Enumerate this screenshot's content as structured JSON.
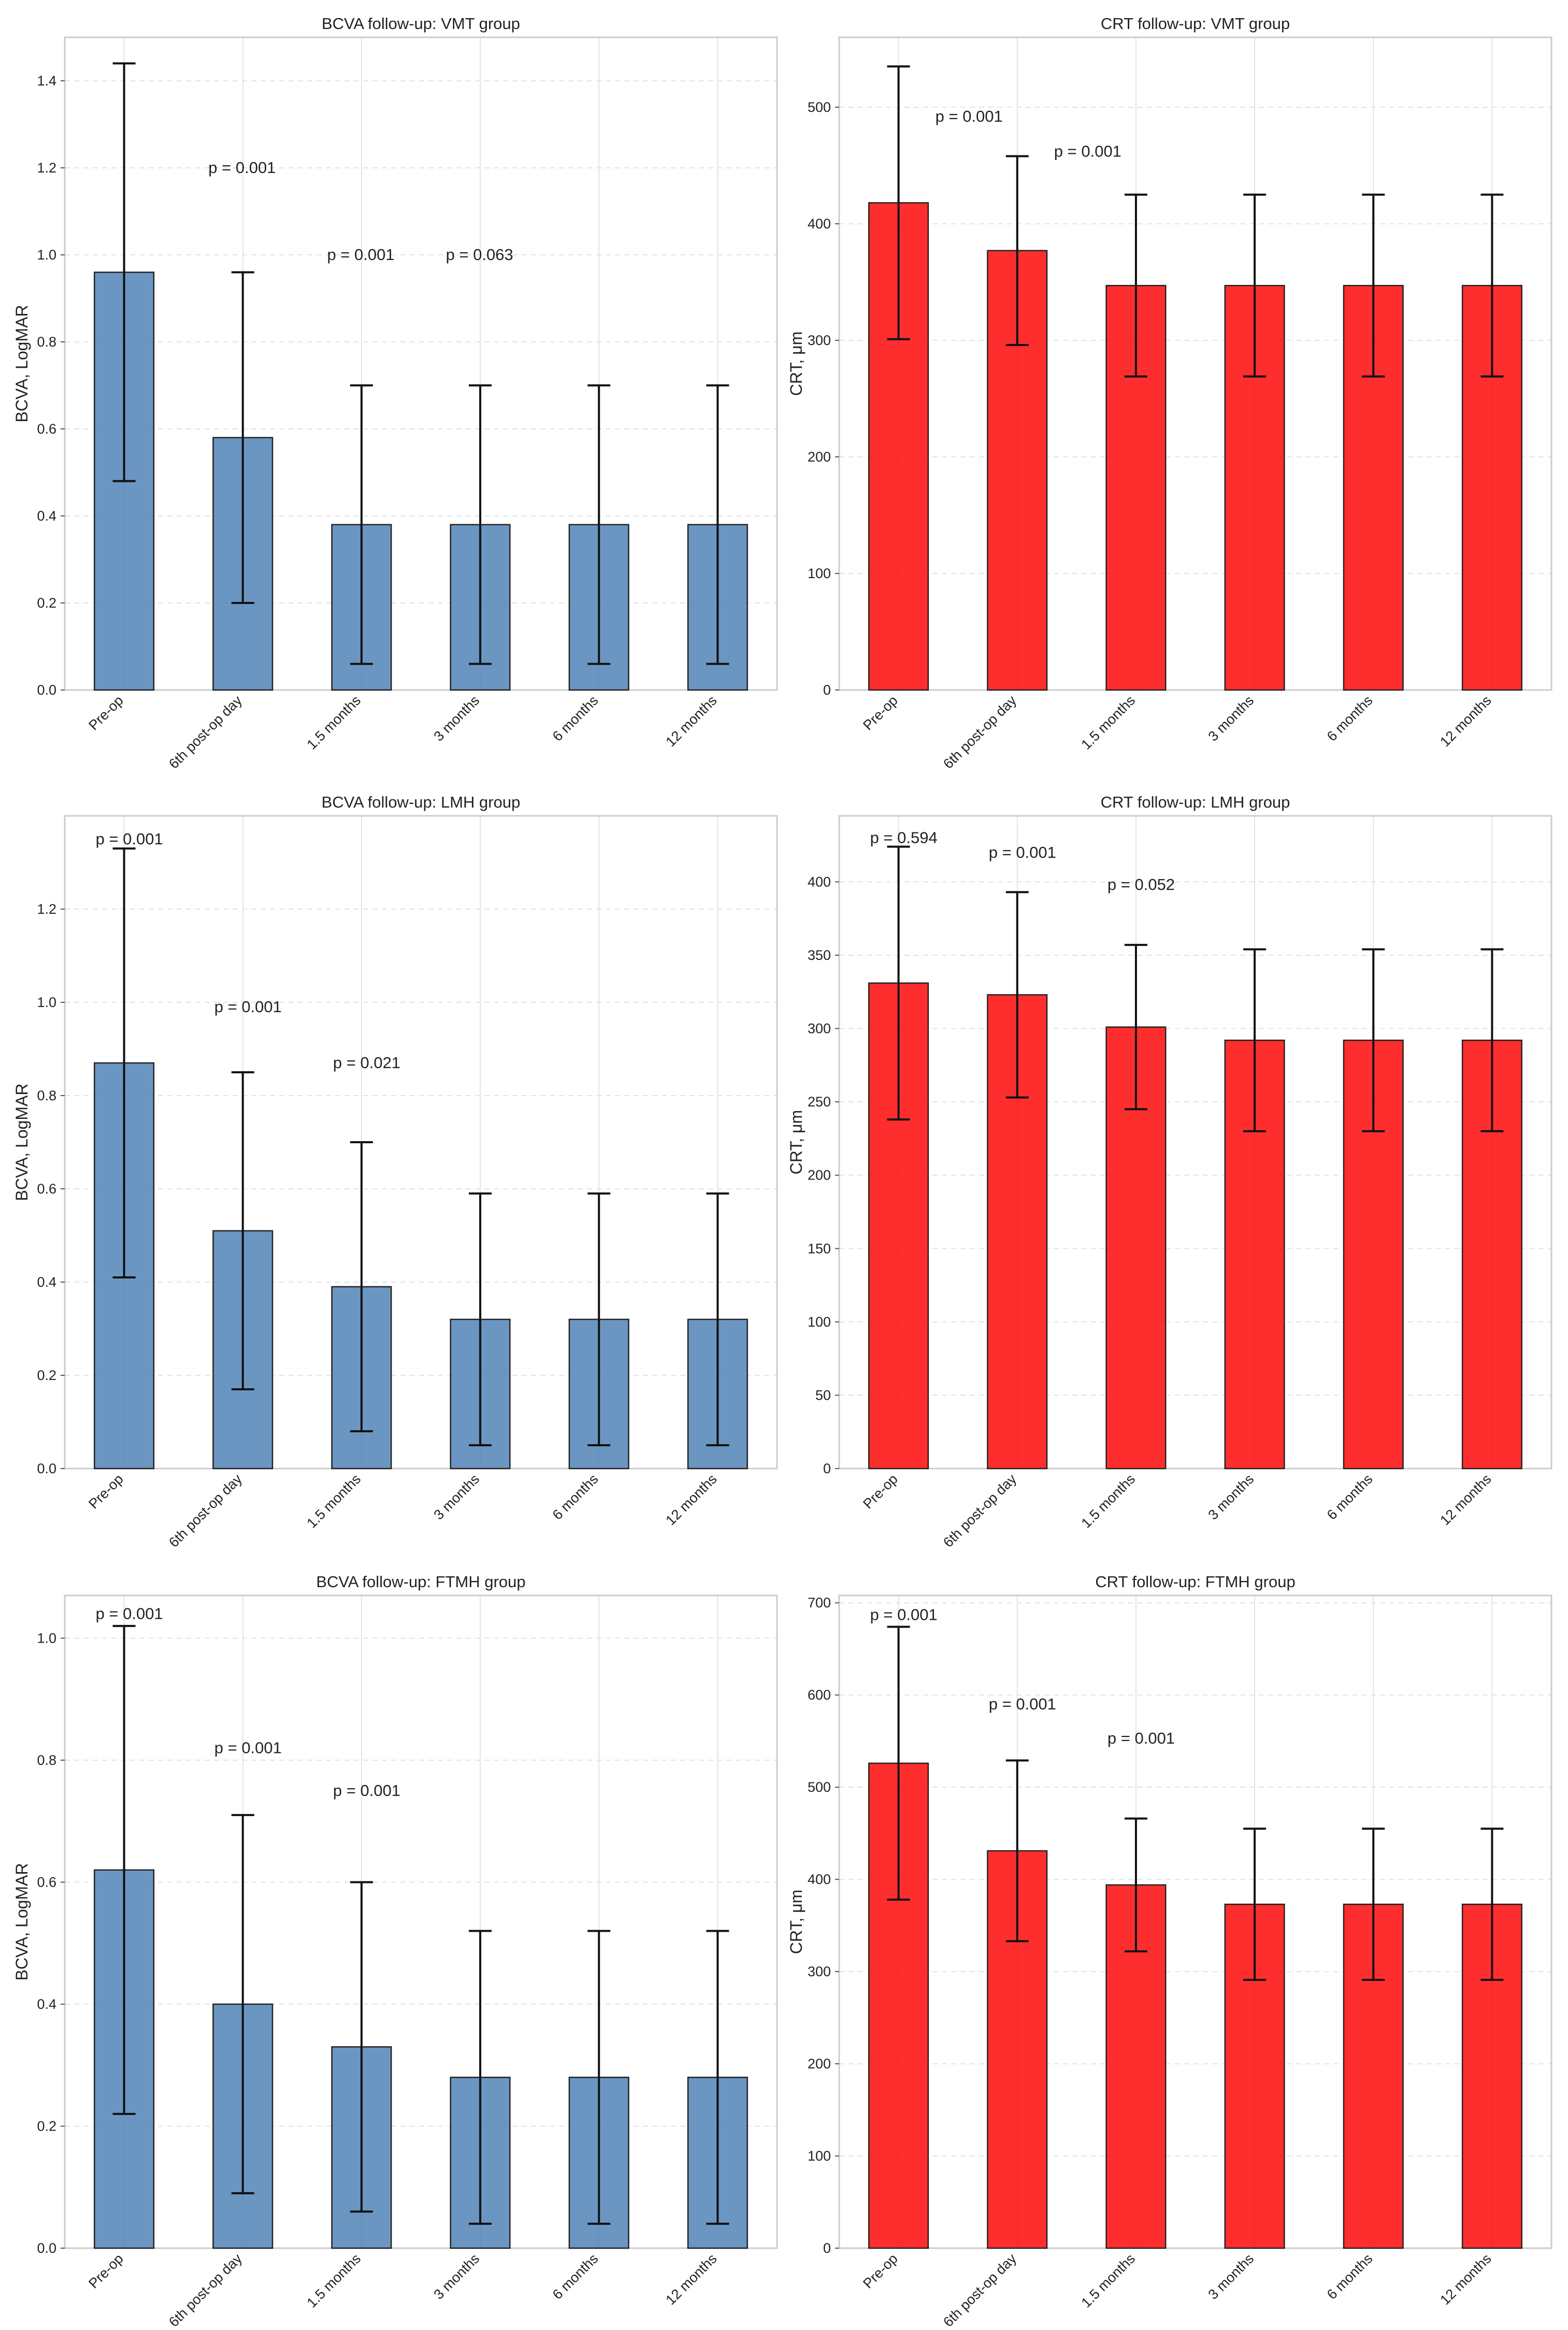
{
  "figure": {
    "bar_color_bcva": "#4a7fb5",
    "bar_color_crt": "#ff0000",
    "bar_edge": "#222222",
    "grid_color": "#e3e3e3"
  },
  "chart_data": [
    {
      "type": "bar",
      "title": "BCVA follow-up: VMT group",
      "ylabel": "BCVA, LogMAR",
      "xlabel": "",
      "color": "#4a7fb5",
      "categories": [
        "Pre-op",
        "6th post-op day",
        "1.5 months",
        "3 months",
        "6 months",
        "12 months"
      ],
      "values": [
        0.96,
        0.58,
        0.38,
        0.38,
        0.38,
        0.38
      ],
      "errors": [
        0.48,
        0.38,
        0.32,
        0.32,
        0.32,
        0.32
      ],
      "ylim": [
        0,
        1.5
      ],
      "yticks": [
        0.0,
        0.2,
        0.4,
        0.6,
        0.8,
        1.0,
        1.2,
        1.4
      ],
      "ytick_decimals": 1,
      "annotations": [
        {
          "text": "p = 0.001",
          "x": 0.95,
          "y": 1.2
        },
        {
          "text": "p = 0.001",
          "x": 1.95,
          "y": 1.0
        },
        {
          "text": "p = 0.063",
          "x": 2.95,
          "y": 1.0
        }
      ]
    },
    {
      "type": "bar",
      "title": "CRT follow-up: VMT group",
      "ylabel": "CRT, μm",
      "xlabel": "",
      "color": "#ff0000",
      "categories": [
        "Pre-op",
        "6th post-op day",
        "1.5 months",
        "3 months",
        "6 months",
        "12 months"
      ],
      "values": [
        418,
        377,
        347,
        347,
        347,
        347
      ],
      "errors": [
        117,
        81,
        78,
        78,
        78,
        78
      ],
      "ylim": [
        0,
        560
      ],
      "yticks": [
        0,
        100,
        200,
        300,
        400,
        500
      ],
      "ytick_decimals": 0,
      "annotations": [
        {
          "text": "p = 0.001",
          "x": 0.55,
          "y": 492
        },
        {
          "text": "p = 0.001",
          "x": 1.55,
          "y": 462
        }
      ]
    },
    {
      "type": "bar",
      "title": "BCVA follow-up: LMH group",
      "ylabel": "BCVA, LogMAR",
      "xlabel": "",
      "color": "#4a7fb5",
      "categories": [
        "Pre-op",
        "6th post-op day",
        "1.5 months",
        "3 months",
        "6 months",
        "12 months"
      ],
      "values": [
        0.87,
        0.51,
        0.39,
        0.32,
        0.32,
        0.32
      ],
      "errors": [
        0.46,
        0.34,
        0.31,
        0.27,
        0.27,
        0.27
      ],
      "ylim": [
        0,
        1.4
      ],
      "yticks": [
        0.0,
        0.2,
        0.4,
        0.6,
        0.8,
        1.0,
        1.2
      ],
      "ytick_decimals": 1,
      "annotations": [
        {
          "text": "p = 0.001",
          "x": 0.0,
          "y": 1.35
        },
        {
          "text": "p = 0.001",
          "x": 1.0,
          "y": 0.99
        },
        {
          "text": "p = 0.021",
          "x": 2.0,
          "y": 0.87
        }
      ]
    },
    {
      "type": "bar",
      "title": "CRT follow-up: LMH group",
      "ylabel": "CRT, μm",
      "xlabel": "",
      "color": "#ff0000",
      "categories": [
        "Pre-op",
        "6th post-op day",
        "1.5 months",
        "3 months",
        "6 months",
        "12 months"
      ],
      "values": [
        331,
        323,
        301,
        292,
        292,
        292
      ],
      "errors": [
        93,
        70,
        56,
        62,
        62,
        62
      ],
      "ylim": [
        0,
        445
      ],
      "yticks": [
        0,
        50,
        100,
        150,
        200,
        250,
        300,
        350,
        400
      ],
      "ytick_decimals": 0,
      "annotations": [
        {
          "text": "p = 0.594",
          "x": 0.0,
          "y": 430
        },
        {
          "text": "p = 0.001",
          "x": 1.0,
          "y": 420
        },
        {
          "text": "p = 0.052",
          "x": 2.0,
          "y": 398
        }
      ]
    },
    {
      "type": "bar",
      "title": "BCVA follow-up: FTMH group",
      "ylabel": "BCVA, LogMAR",
      "xlabel": "",
      "color": "#4a7fb5",
      "categories": [
        "Pre-op",
        "6th post-op day",
        "1.5 months",
        "3 months",
        "6 months",
        "12 months"
      ],
      "values": [
        0.62,
        0.4,
        0.33,
        0.28,
        0.28,
        0.28
      ],
      "errors": [
        0.4,
        0.31,
        0.27,
        0.24,
        0.24,
        0.24
      ],
      "ylim": [
        0,
        1.07
      ],
      "yticks": [
        0.0,
        0.2,
        0.4,
        0.6,
        0.8,
        1.0
      ],
      "ytick_decimals": 1,
      "annotations": [
        {
          "text": "p = 0.001",
          "x": 0.0,
          "y": 1.04
        },
        {
          "text": "p = 0.001",
          "x": 1.0,
          "y": 0.82
        },
        {
          "text": "p = 0.001",
          "x": 2.0,
          "y": 0.75
        }
      ]
    },
    {
      "type": "bar",
      "title": "CRT follow-up: FTMH group",
      "ylabel": "CRT, μm",
      "xlabel": "",
      "color": "#ff0000",
      "categories": [
        "Pre-op",
        "6th post-op day",
        "1.5 months",
        "3 months",
        "6 months",
        "12 months"
      ],
      "values": [
        526,
        431,
        394,
        373,
        373,
        373
      ],
      "errors": [
        148,
        98,
        72,
        82,
        82,
        82
      ],
      "ylim": [
        0,
        708
      ],
      "yticks": [
        0,
        100,
        200,
        300,
        400,
        500,
        600,
        700
      ],
      "ytick_decimals": 0,
      "annotations": [
        {
          "text": "p = 0.001",
          "x": 0.0,
          "y": 687
        },
        {
          "text": "p = 0.001",
          "x": 1.0,
          "y": 590
        },
        {
          "text": "p = 0.001",
          "x": 2.0,
          "y": 553
        }
      ]
    }
  ]
}
